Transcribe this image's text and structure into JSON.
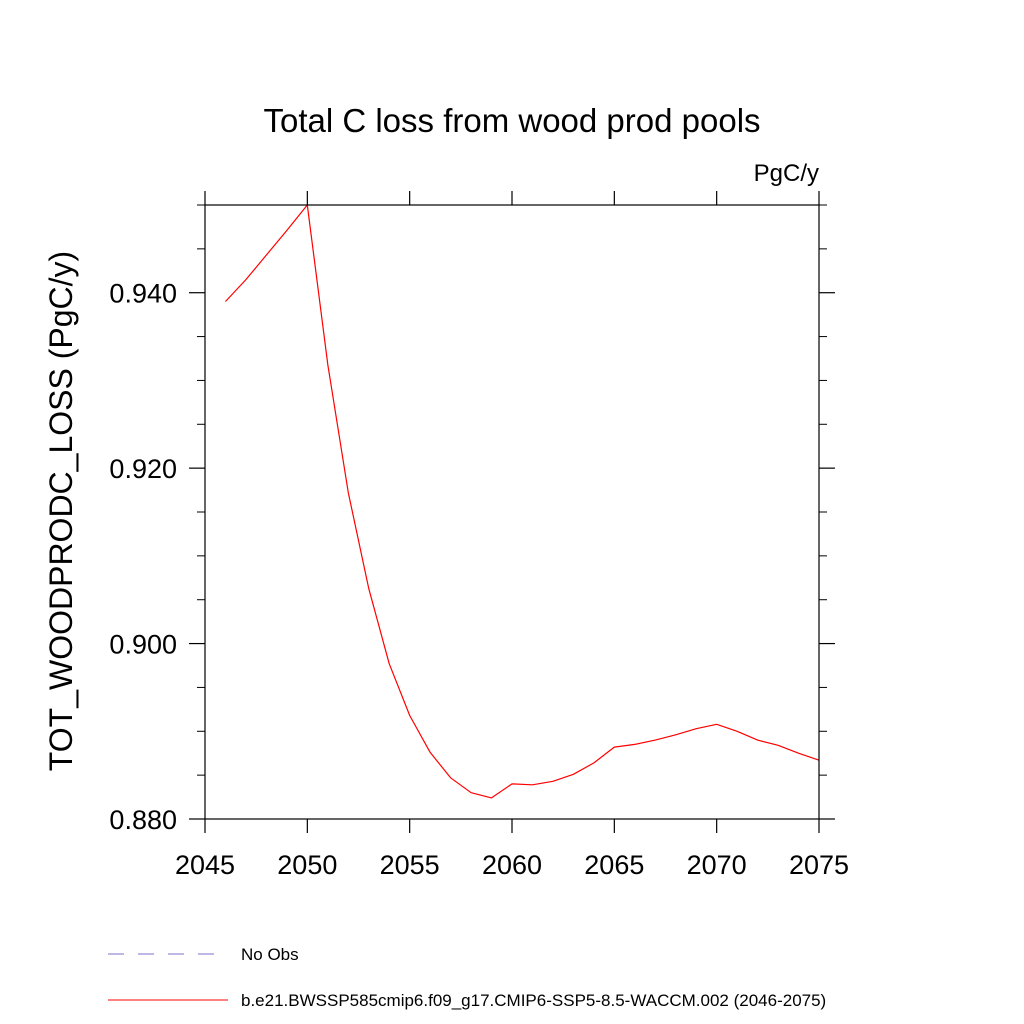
{
  "chart_data": {
    "type": "line",
    "title": "Total C loss from wood prod pools",
    "units_label": "PgC/y",
    "ylabel": "TOT_WOODPRODC_LOSS  (PgC/y)",
    "xlabel": "",
    "xlim": [
      2045,
      2075
    ],
    "ylim": [
      0.88,
      0.95
    ],
    "x_ticks": [
      2045,
      2050,
      2055,
      2060,
      2065,
      2070,
      2075
    ],
    "x_tick_labels": [
      "2045",
      "2050",
      "2055",
      "2060",
      "2065",
      "2070",
      "2075"
    ],
    "y_ticks": [
      0.88,
      0.9,
      0.92,
      0.94
    ],
    "y_tick_labels": [
      "0.880",
      "0.900",
      "0.920",
      "0.940"
    ],
    "y_minor_step": 0.005,
    "grid": false,
    "legend_position": "bottom-left",
    "legend": [
      {
        "label": "No Obs",
        "color": "#7b72c8",
        "style": "dashed"
      },
      {
        "label": "b.e21.BWSSP585cmip6.f09_g17.CMIP6-SSP5-8.5-WACCM.002 (2046-2075)",
        "color": "#ff0000",
        "style": "solid"
      }
    ],
    "series": [
      {
        "name": "b.e21.BWSSP585cmip6.f09_g17.CMIP6-SSP5-8.5-WACCM.002 (2046-2075)",
        "color": "#ff0000",
        "x": [
          2046,
          2047,
          2048,
          2049,
          2050,
          2051,
          2052,
          2053,
          2054,
          2055,
          2056,
          2057,
          2058,
          2059,
          2060,
          2061,
          2062,
          2063,
          2064,
          2065,
          2066,
          2067,
          2068,
          2069,
          2070,
          2071,
          2072,
          2073,
          2074,
          2075
        ],
        "y": [
          0.939,
          0.9415,
          0.9443,
          0.9471,
          0.95,
          0.9318,
          0.9172,
          0.9063,
          0.8977,
          0.8918,
          0.8876,
          0.8847,
          0.883,
          0.8824,
          0.884,
          0.8839,
          0.8843,
          0.8851,
          0.8864,
          0.8882,
          0.8885,
          0.889,
          0.8896,
          0.8903,
          0.8908,
          0.89,
          0.889,
          0.8884,
          0.8875,
          0.8867
        ]
      }
    ]
  }
}
